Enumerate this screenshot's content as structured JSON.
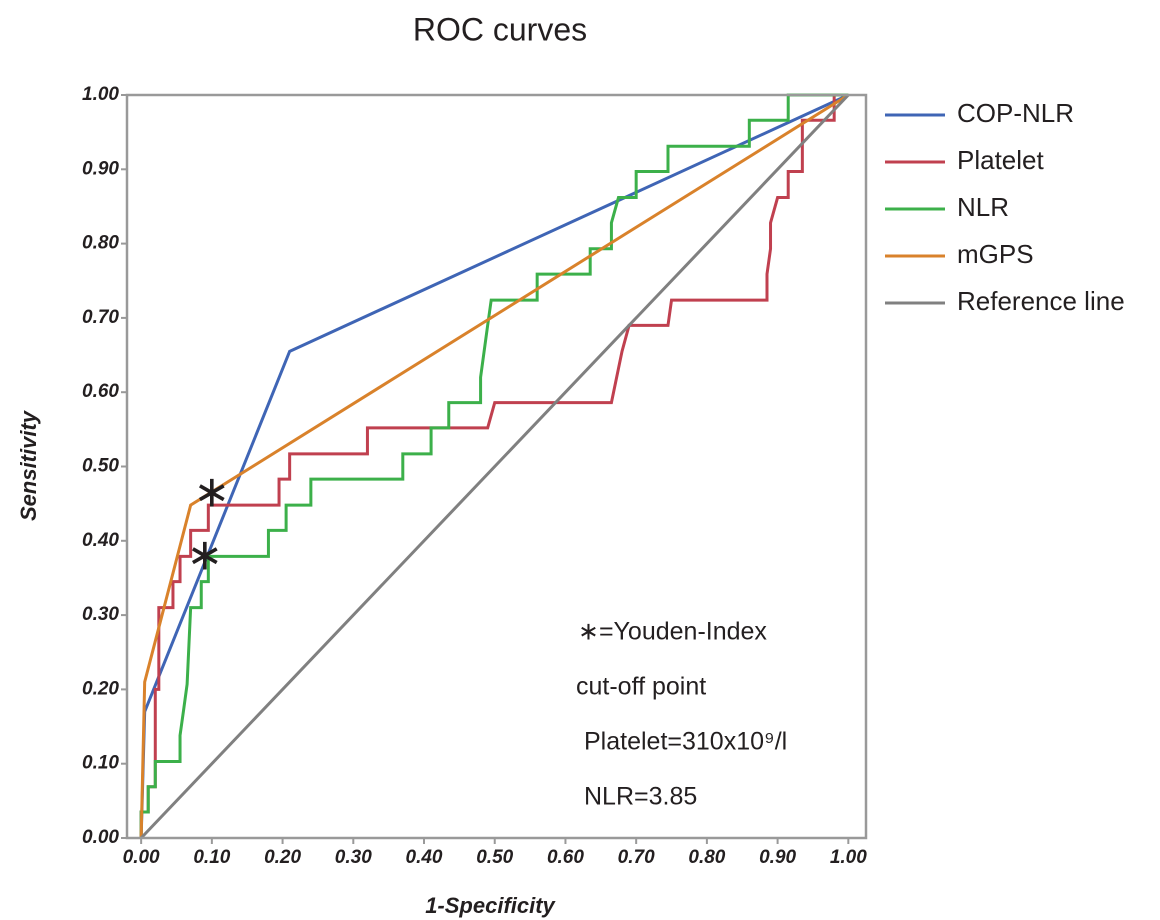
{
  "chart_data": {
    "type": "line",
    "title": "ROC curves",
    "xlabel": "1-Specificity",
    "ylabel": "Sensitivity",
    "xlim": [
      -0.02,
      1.025
    ],
    "ylim": [
      0,
      1
    ],
    "xticks": [
      {
        "value": 0,
        "label": "0.00"
      },
      {
        "value": 0.1,
        "label": "0.10"
      },
      {
        "value": 0.2,
        "label": "0.20"
      },
      {
        "value": 0.3,
        "label": "0.30"
      },
      {
        "value": 0.4,
        "label": "0.40"
      },
      {
        "value": 0.5,
        "label": "0.50"
      },
      {
        "value": 0.6,
        "label": "0.60"
      },
      {
        "value": 0.7,
        "label": "0.70"
      },
      {
        "value": 0.8,
        "label": "0.80"
      },
      {
        "value": 0.9,
        "label": "0.90"
      },
      {
        "value": 1,
        "label": "1.00"
      }
    ],
    "yticks": [
      {
        "value": 0,
        "label": "0.00"
      },
      {
        "value": 0.1,
        "label": "0.10"
      },
      {
        "value": 0.2,
        "label": "0.20"
      },
      {
        "value": 0.3,
        "label": "0.30"
      },
      {
        "value": 0.4,
        "label": "0.40"
      },
      {
        "value": 0.5,
        "label": "0.50"
      },
      {
        "value": 0.6,
        "label": "0.60"
      },
      {
        "value": 0.7,
        "label": "0.70"
      },
      {
        "value": 0.8,
        "label": "0.80"
      },
      {
        "value": 0.9,
        "label": "0.90"
      },
      {
        "value": 1,
        "label": "1.00"
      }
    ],
    "legend": "right",
    "series": [
      {
        "name": "COP-NLR",
        "color": "#3f65b5",
        "x": [
          0,
          0.005,
          0.21,
          1
        ],
        "values": [
          0,
          0.17,
          0.655,
          1
        ]
      },
      {
        "name": "Platelet",
        "color": "#c0404f",
        "x": [
          0,
          0,
          0.01,
          0.01,
          0.02,
          0.02,
          0.025,
          0.025,
          0.045,
          0.045,
          0.055,
          0.055,
          0.07,
          0.07,
          0.095,
          0.095,
          0.195,
          0.195,
          0.21,
          0.21,
          0.32,
          0.32,
          0.49,
          0.5,
          0.665,
          0.68,
          0.69,
          0.745,
          0.75,
          0.885,
          0.885,
          0.89,
          0.89,
          0.9,
          0.915,
          0.915,
          0.935,
          0.935,
          0.98,
          0.98,
          1
        ],
        "values": [
          0,
          0.035,
          0.035,
          0.069,
          0.069,
          0.2,
          0.2,
          0.31,
          0.31,
          0.345,
          0.345,
          0.379,
          0.379,
          0.414,
          0.414,
          0.448,
          0.448,
          0.483,
          0.483,
          0.517,
          0.517,
          0.552,
          0.552,
          0.586,
          0.586,
          0.655,
          0.69,
          0.69,
          0.724,
          0.724,
          0.759,
          0.793,
          0.828,
          0.862,
          0.862,
          0.897,
          0.897,
          0.966,
          0.966,
          1,
          1
        ]
      },
      {
        "name": "NLR",
        "color": "#3cb04a",
        "x": [
          0,
          0,
          0.01,
          0.01,
          0.02,
          0.02,
          0.055,
          0.055,
          0.06,
          0.065,
          0.07,
          0.085,
          0.085,
          0.095,
          0.095,
          0.18,
          0.18,
          0.205,
          0.205,
          0.24,
          0.24,
          0.37,
          0.37,
          0.41,
          0.41,
          0.435,
          0.435,
          0.48,
          0.48,
          0.485,
          0.49,
          0.495,
          0.56,
          0.56,
          0.635,
          0.635,
          0.665,
          0.665,
          0.675,
          0.7,
          0.7,
          0.745,
          0.745,
          0.86,
          0.86,
          0.915,
          0.915,
          1
        ],
        "values": [
          0,
          0.035,
          0.035,
          0.069,
          0.069,
          0.103,
          0.103,
          0.138,
          0.172,
          0.207,
          0.31,
          0.31,
          0.345,
          0.345,
          0.379,
          0.379,
          0.414,
          0.414,
          0.448,
          0.448,
          0.483,
          0.483,
          0.517,
          0.517,
          0.552,
          0.552,
          0.586,
          0.586,
          0.62,
          0.655,
          0.69,
          0.724,
          0.724,
          0.759,
          0.759,
          0.793,
          0.793,
          0.828,
          0.862,
          0.862,
          0.897,
          0.897,
          0.931,
          0.931,
          0.966,
          0.966,
          1,
          1
        ]
      },
      {
        "name": "mGPS",
        "color": "#d9822b",
        "x": [
          0,
          0.005,
          0.07,
          1
        ],
        "values": [
          0,
          0.21,
          0.448,
          1
        ]
      },
      {
        "name": "Reference line",
        "color": "#808080",
        "x": [
          0,
          1
        ],
        "values": [
          0,
          1
        ]
      }
    ],
    "youden_points": {
      "symbol": "∗",
      "x": [
        0.1,
        0.09
      ],
      "values": [
        0.47,
        0.385
      ]
    },
    "annotations": [
      "∗=Youden-Index",
      "cut-off point",
      "Platelet=310x10⁹/l",
      "NLR=3.85"
    ]
  }
}
